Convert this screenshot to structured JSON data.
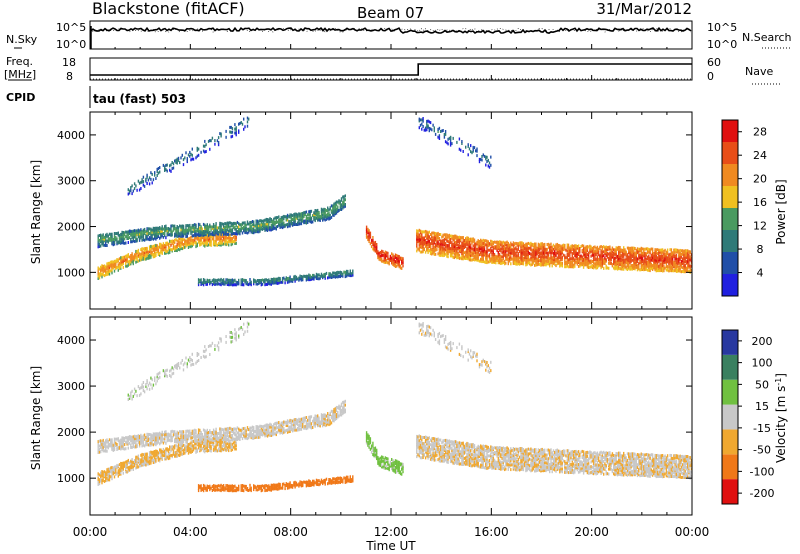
{
  "header": {
    "station": "Blackstone (fitACF)",
    "beam": "Beam 07",
    "date": "31/Mar/2012"
  },
  "noise_panel": {
    "left_label": "N.Sky",
    "right_label": "N.Search",
    "left_ticks": [
      "10^5",
      "10^0"
    ],
    "right_ticks": [
      "10^5",
      "10^0"
    ],
    "sky_level_log10": 3.6,
    "search_level_log10": 3.5
  },
  "freq_panel": {
    "left_label_line1": "Freq.",
    "left_label_line2": "[MHz]",
    "right_label": "Nave",
    "left_ticks": [
      "18",
      "8"
    ],
    "right_ticks": [
      "60",
      "0"
    ],
    "freq_mhz": [
      {
        "from": "00:00",
        "to": "13:05",
        "value": 10.5
      },
      {
        "from": "13:05",
        "to": "24:00",
        "value": 16.0
      }
    ],
    "nave": 3
  },
  "cpid_panel": {
    "label": "CPID",
    "program": "tau (fast) 503"
  },
  "x_axis": {
    "label": "Time UT",
    "ticks": [
      "00:00",
      "04:00",
      "08:00",
      "12:00",
      "16:00",
      "20:00",
      "00:00"
    ]
  },
  "power_panel": {
    "ylabel": "Slant Range [km]",
    "yticks": [
      "1000",
      "2000",
      "3000",
      "4000"
    ],
    "colorbar_label": "Power [dB]",
    "colorbar_ticks": [
      "4",
      "8",
      "12",
      "16",
      "20",
      "24",
      "28"
    ]
  },
  "velocity_panel": {
    "ylabel": "Slant Range [km]",
    "yticks": [
      "1000",
      "2000",
      "3000",
      "4000"
    ],
    "colorbar_label": "Velocity [m s^-1]",
    "colorbar_ticks": [
      "200",
      "100",
      "50",
      "15",
      "-15",
      "-50",
      "-100",
      "-200"
    ]
  },
  "chart_data": {
    "type": "heatmap",
    "title": "Blackstone (fitACF) Beam 07 31/Mar/2012",
    "xlabel": "Time UT",
    "xlim": [
      "00:00",
      "24:00"
    ],
    "ylim_km": [
      200,
      4500
    ],
    "power_colorbar": {
      "label": "Power [dB]",
      "range": [
        0,
        30
      ],
      "colors": [
        "#2020e0",
        "#204fa8",
        "#2f7a78",
        "#4a9a60",
        "#f0c020",
        "#f08a20",
        "#e84e18",
        "#e01010"
      ]
    },
    "velocity_colorbar": {
      "label": "Velocity [m s^-1]",
      "boundaries": [
        -200,
        -100,
        -50,
        -15,
        15,
        50,
        100,
        200
      ],
      "colors": [
        "#e01010",
        "#f07818",
        "#f0a830",
        "#c8c8c8",
        "#70c040",
        "#3a8060",
        "#2838a0"
      ]
    },
    "scatter_bands": [
      {
        "name": "lower band",
        "t": [
          0.3,
          2.0,
          4.0,
          5.8
        ],
        "range_km": [
          1000,
          1400,
          1700,
          1750
        ],
        "power_db": 18,
        "velocity": -20
      },
      {
        "name": "main band",
        "t": [
          0.3,
          3.0,
          6.5,
          9.5,
          10.2
        ],
        "range_km": [
          1700,
          1900,
          2000,
          2300,
          2600
        ],
        "power_db": 10,
        "velocity": -5
      },
      {
        "name": "ionospheric band",
        "t": [
          4.3,
          7.0,
          10.5
        ],
        "range_km": [
          800,
          800,
          1000
        ],
        "power_db": 8,
        "velocity": -70
      },
      {
        "name": "post-gap band",
        "t": [
          11.0,
          11.5,
          12.5
        ],
        "range_km": [
          1900,
          1400,
          1200
        ],
        "power_db": 24,
        "velocity": 25
      },
      {
        "name": "afternoon band",
        "t": [
          13.0,
          16.0,
          20.0,
          24.0
        ],
        "range_km": [
          1700,
          1450,
          1350,
          1250
        ],
        "power_db": 22,
        "velocity": -10
      },
      {
        "name": "high range spur",
        "t": [
          13.1,
          16.0
        ],
        "range_km": [
          4300,
          3400
        ],
        "power_db": 6,
        "velocity": -5
      },
      {
        "name": "morning high range",
        "t": [
          1.5,
          6.3
        ],
        "range_km": [
          2800,
          4300
        ],
        "power_db": 6,
        "velocity": 5
      }
    ]
  }
}
